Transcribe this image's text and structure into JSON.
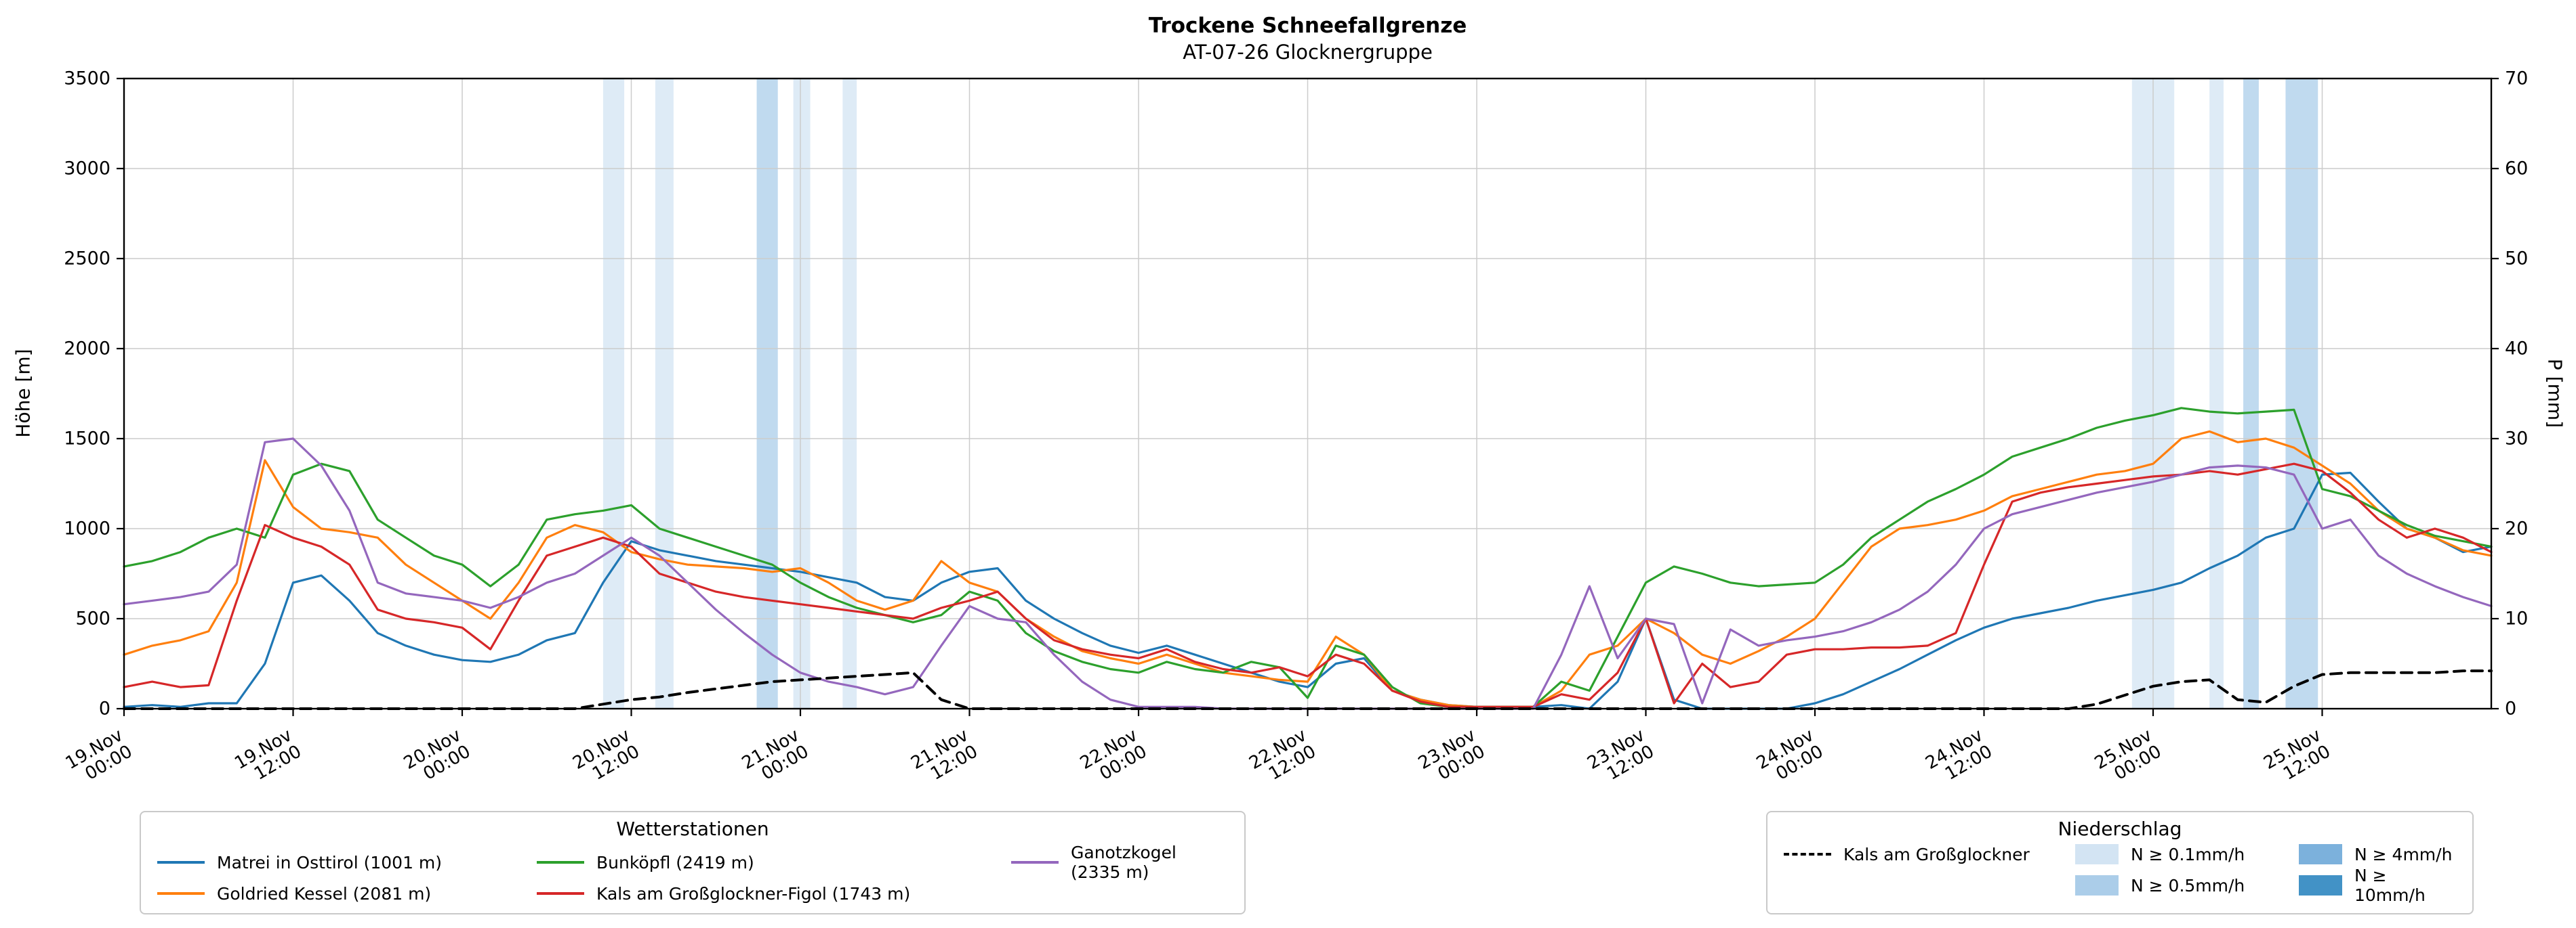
{
  "legends": {
    "stations_title": "Wetterstationen",
    "precip_title": "Niederschlag"
  },
  "chart_data": {
    "type": "line",
    "title": "Trockene Schneefallgrenze",
    "subtitle": "AT-07-26 Glocknergruppe",
    "ylabel_left": "Höhe [m]",
    "ylabel_right": "P [mm]",
    "ylim_left": [
      0,
      3500
    ],
    "ylim_right": [
      0,
      70
    ],
    "y_ticks_left": [
      0,
      500,
      1000,
      1500,
      2000,
      2500,
      3000,
      3500
    ],
    "y_ticks_right": [
      0,
      10,
      20,
      30,
      40,
      50,
      60,
      70
    ],
    "grid": true,
    "x_range_hours": [
      0,
      168
    ],
    "x_hours_step": 2,
    "x_ticks": [
      {
        "hour": 0,
        "date": "19.Nov",
        "time": "00:00"
      },
      {
        "hour": 12,
        "date": "19.Nov",
        "time": "12:00"
      },
      {
        "hour": 24,
        "date": "20.Nov",
        "time": "00:00"
      },
      {
        "hour": 36,
        "date": "20.Nov",
        "time": "12:00"
      },
      {
        "hour": 48,
        "date": "21.Nov",
        "time": "00:00"
      },
      {
        "hour": 60,
        "date": "21.Nov",
        "time": "12:00"
      },
      {
        "hour": 72,
        "date": "22.Nov",
        "time": "00:00"
      },
      {
        "hour": 84,
        "date": "22.Nov",
        "time": "12:00"
      },
      {
        "hour": 96,
        "date": "23.Nov",
        "time": "00:00"
      },
      {
        "hour": 108,
        "date": "23.Nov",
        "time": "12:00"
      },
      {
        "hour": 120,
        "date": "24.Nov",
        "time": "00:00"
      },
      {
        "hour": 132,
        "date": "24.Nov",
        "time": "12:00"
      },
      {
        "hour": 144,
        "date": "25.Nov",
        "time": "00:00"
      },
      {
        "hour": 156,
        "date": "25.Nov",
        "time": "12:00"
      }
    ],
    "series": [
      {
        "id": "matrei",
        "name": "Matrei in Osttirol (1001 m)",
        "color": "#1f77b4",
        "axis": "left",
        "dashed": false,
        "values": [
          10,
          20,
          10,
          30,
          30,
          250,
          700,
          740,
          600,
          420,
          350,
          300,
          270,
          260,
          300,
          380,
          420,
          700,
          930,
          880,
          850,
          820,
          800,
          780,
          760,
          730,
          700,
          620,
          600,
          700,
          760,
          780,
          600,
          500,
          420,
          350,
          310,
          350,
          300,
          250,
          200,
          150,
          120,
          250,
          280,
          100,
          50,
          20,
          10,
          10,
          10,
          20,
          0,
          150,
          500,
          50,
          0,
          0,
          0,
          0,
          30,
          80,
          150,
          220,
          300,
          380,
          450,
          500,
          530,
          560,
          600,
          630,
          660,
          700,
          780,
          850,
          950,
          1000,
          1300,
          1310,
          1150,
          1000,
          950,
          870,
          900
        ]
      },
      {
        "id": "goldried",
        "name": "Goldried Kessel (2081 m)",
        "color": "#ff7f0e",
        "axis": "left",
        "dashed": false,
        "values": [
          300,
          350,
          380,
          430,
          700,
          1380,
          1120,
          1000,
          980,
          950,
          800,
          700,
          600,
          500,
          700,
          950,
          1020,
          980,
          870,
          830,
          800,
          790,
          780,
          760,
          780,
          700,
          600,
          550,
          600,
          820,
          700,
          650,
          500,
          400,
          320,
          280,
          250,
          300,
          250,
          200,
          180,
          160,
          150,
          400,
          300,
          100,
          50,
          20,
          10,
          10,
          10,
          100,
          300,
          350,
          500,
          420,
          300,
          250,
          320,
          400,
          500,
          700,
          900,
          1000,
          1020,
          1050,
          1100,
          1180,
          1220,
          1260,
          1300,
          1320,
          1360,
          1500,
          1540,
          1480,
          1500,
          1450,
          1350,
          1250,
          1100,
          1000,
          950,
          880,
          850
        ]
      },
      {
        "id": "bunkoepfl",
        "name": "Bunköpfl (2419 m)",
        "color": "#2ca02c",
        "axis": "left",
        "dashed": false,
        "values": [
          790,
          820,
          870,
          950,
          1000,
          950,
          1300,
          1360,
          1320,
          1050,
          950,
          850,
          800,
          680,
          800,
          1050,
          1080,
          1100,
          1130,
          1000,
          950,
          900,
          850,
          800,
          700,
          620,
          560,
          520,
          480,
          520,
          650,
          600,
          420,
          320,
          260,
          220,
          200,
          260,
          220,
          200,
          260,
          230,
          60,
          350,
          300,
          120,
          30,
          10,
          10,
          10,
          10,
          150,
          100,
          400,
          700,
          790,
          750,
          700,
          680,
          690,
          700,
          800,
          950,
          1050,
          1150,
          1220,
          1300,
          1400,
          1450,
          1500,
          1560,
          1600,
          1630,
          1670,
          1650,
          1640,
          1650,
          1660,
          1220,
          1180,
          1100,
          1020,
          960,
          930,
          900
        ]
      },
      {
        "id": "kals_figol",
        "name": "Kals am Großglockner-Figol (1743 m)",
        "color": "#d62728",
        "axis": "left",
        "dashed": false,
        "values": [
          120,
          150,
          120,
          130,
          600,
          1020,
          950,
          900,
          800,
          550,
          500,
          480,
          450,
          330,
          600,
          850,
          900,
          950,
          900,
          750,
          700,
          650,
          620,
          600,
          580,
          560,
          540,
          520,
          500,
          560,
          600,
          650,
          500,
          380,
          330,
          300,
          280,
          330,
          260,
          220,
          200,
          230,
          180,
          300,
          250,
          100,
          40,
          10,
          10,
          10,
          10,
          80,
          50,
          200,
          500,
          30,
          250,
          120,
          150,
          300,
          330,
          330,
          340,
          340,
          350,
          420,
          800,
          1150,
          1200,
          1230,
          1250,
          1270,
          1290,
          1300,
          1320,
          1300,
          1330,
          1360,
          1320,
          1200,
          1050,
          950,
          1000,
          950,
          870
        ]
      },
      {
        "id": "ganotzkogel",
        "name": "Ganotzkogel (2335 m)",
        "color": "#9467bd",
        "axis": "left",
        "dashed": false,
        "values": [
          580,
          600,
          620,
          650,
          800,
          1480,
          1500,
          1350,
          1100,
          700,
          640,
          620,
          600,
          560,
          620,
          700,
          750,
          850,
          950,
          850,
          700,
          550,
          420,
          300,
          200,
          150,
          120,
          80,
          120,
          350,
          570,
          500,
          480,
          300,
          150,
          50,
          10,
          10,
          10,
          0,
          0,
          0,
          0,
          0,
          0,
          0,
          0,
          0,
          0,
          0,
          0,
          300,
          680,
          280,
          500,
          470,
          30,
          440,
          350,
          380,
          400,
          430,
          480,
          550,
          650,
          800,
          1000,
          1080,
          1120,
          1160,
          1200,
          1230,
          1260,
          1300,
          1340,
          1350,
          1340,
          1300,
          1000,
          1050,
          850,
          750,
          680,
          620,
          570
        ]
      },
      {
        "id": "kals_precip",
        "name": "Kals am Großglockner",
        "color": "#000000",
        "axis": "right",
        "dashed": true,
        "values": [
          0,
          0,
          0,
          0,
          0,
          0,
          0,
          0,
          0,
          0,
          0,
          0,
          0,
          0,
          0,
          0,
          0,
          0.5,
          1,
          1.3,
          1.8,
          2.2,
          2.6,
          3,
          3.2,
          3.4,
          3.6,
          3.8,
          4,
          1,
          0,
          0,
          0,
          0,
          0,
          0,
          0,
          0,
          0,
          0,
          0,
          0,
          0,
          0,
          0,
          0,
          0,
          0,
          0,
          0,
          0,
          0,
          0,
          0,
          0,
          0,
          0,
          0,
          0,
          0,
          0,
          0,
          0,
          0,
          0,
          0,
          0,
          0,
          0,
          0,
          0.5,
          1.5,
          2.5,
          3,
          3.2,
          1,
          0.7,
          2.5,
          3.8,
          4,
          4,
          4,
          4,
          4.2,
          4.2
        ]
      }
    ],
    "precip_bands": {
      "levels": [
        {
          "label": "N ≥ 0.1mm/h",
          "color": "#d3e4f3"
        },
        {
          "label": "N ≥ 0.5mm/h",
          "color": "#abcde9"
        },
        {
          "label": "N ≥ 4mm/h",
          "color": "#7cb1dc"
        },
        {
          "label": "N ≥ 10mm/h",
          "color": "#4292c6"
        }
      ],
      "bands": [
        {
          "start": 34,
          "end": 35.5,
          "level": 0
        },
        {
          "start": 37.7,
          "end": 39,
          "level": 0
        },
        {
          "start": 44.9,
          "end": 46.4,
          "level": 1
        },
        {
          "start": 47.5,
          "end": 48.7,
          "level": 0
        },
        {
          "start": 51,
          "end": 52,
          "level": 0
        },
        {
          "start": 142.5,
          "end": 145.5,
          "level": 0
        },
        {
          "start": 148,
          "end": 149,
          "level": 0
        },
        {
          "start": 150.4,
          "end": 151.5,
          "level": 1
        },
        {
          "start": 153.4,
          "end": 155.7,
          "level": 1
        }
      ]
    }
  }
}
